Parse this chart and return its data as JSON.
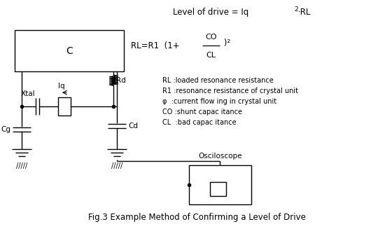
{
  "title": "Fig.3 Example Method of Confirming a Level of Drive",
  "top_formula": "Level of drive = Iq²·RL",
  "annotations": [
    "RL :loaded resonance resistance",
    "R1 :resonance resistance of crystal unit",
    "φ  :current flow ing in crystal unit",
    "CO :shunt capac itance",
    "CL  :bad capac itance"
  ],
  "bg_color": "#ffffff",
  "fg_color": "#000000"
}
